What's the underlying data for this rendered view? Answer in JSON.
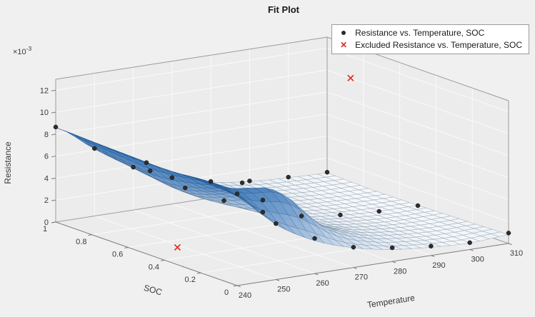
{
  "chart_data": {
    "type": "surface",
    "title": "Fit Plot",
    "axes": {
      "x": {
        "label": "Temperature",
        "range": [
          240,
          310
        ],
        "ticks": [
          240,
          250,
          260,
          270,
          280,
          290,
          300,
          310
        ]
      },
      "y": {
        "label": "SOC",
        "range": [
          0,
          1
        ],
        "ticks": [
          0,
          0.2,
          0.4,
          0.6,
          0.8,
          1
        ]
      },
      "z": {
        "label": "Resistance",
        "multiplier_text": "×10",
        "multiplier_exponent": "-3",
        "range_scaled": [
          0,
          13
        ],
        "ticks": [
          0,
          2,
          4,
          6,
          8,
          10,
          12
        ]
      }
    },
    "legend": {
      "items": [
        {
          "label": "Resistance vs. Temperature, SOC",
          "marker": "dot",
          "color": "#2b2b2b",
          "glyph": "●"
        },
        {
          "label": "Excluded Resistance vs. Temperature, SOC",
          "marker": "x",
          "color": "#df2a1e",
          "glyph": "✕"
        }
      ]
    },
    "surface": {
      "temps": [
        240,
        250,
        260,
        270,
        280,
        290,
        300,
        310
      ],
      "socs": [
        0,
        0.2,
        0.4,
        0.6,
        0.8,
        1
      ],
      "resistance_mOhm": [
        [
          8.2,
          5.0,
          3.0,
          1.8,
          1.1,
          0.75,
          0.6,
          0.8
        ],
        [
          8.4,
          6.9,
          6.3,
          2.9,
          1.4,
          0.85,
          0.65,
          0.7
        ],
        [
          8.3,
          6.0,
          4.4,
          2.2,
          1.25,
          0.8,
          0.6,
          0.62
        ],
        [
          8.4,
          5.3,
          3.3,
          1.95,
          1.15,
          0.75,
          0.58,
          0.55
        ],
        [
          8.5,
          5.7,
          3.45,
          2.05,
          1.25,
          0.85,
          0.62,
          0.55
        ],
        [
          8.6,
          6.1,
          3.9,
          2.4,
          1.45,
          0.95,
          0.75,
          0.65
        ]
      ]
    },
    "scatter_points_T_SOC_mOhm": [
      [
        240,
        0,
        8.35
      ],
      [
        250,
        0,
        5.1
      ],
      [
        260,
        0,
        3.2
      ],
      [
        270,
        0,
        1.85
      ],
      [
        280,
        0,
        1.25
      ],
      [
        290,
        0,
        0.85
      ],
      [
        300,
        0,
        0.62
      ],
      [
        310,
        0,
        0.95
      ],
      [
        240,
        0.5,
        8.3
      ],
      [
        250,
        0.5,
        5.45
      ],
      [
        260,
        0.5,
        3.75
      ],
      [
        270,
        0.5,
        2.15
      ],
      [
        280,
        0.5,
        1.25
      ],
      [
        290,
        0.5,
        0.8
      ],
      [
        300,
        0.5,
        0.58
      ],
      [
        310,
        0.5,
        0.55
      ],
      [
        240,
        1,
        8.65
      ],
      [
        250,
        1,
        6.15
      ],
      [
        260,
        1,
        3.9
      ],
      [
        270,
        1,
        2.4
      ],
      [
        280,
        1,
        1.5
      ],
      [
        290,
        1,
        1.0
      ],
      [
        300,
        1,
        0.8
      ],
      [
        310,
        1,
        0.7
      ],
      [
        253,
        0.25,
        7.2
      ],
      [
        255,
        0.8,
        5.0
      ],
      [
        263,
        0.35,
        4.5
      ]
    ],
    "excluded_points_T_SOC_mOhm": [
      [
        295,
        0.55,
        12.7
      ],
      [
        248,
        0.5,
        0.15
      ]
    ],
    "colors": {
      "background": "#f0f0f0",
      "wall": "#ececec",
      "grid": "#fafafa",
      "box_edge": "#9b9b9b",
      "axis_edge": "#7a7a7a",
      "tick_text": "#3a3a3a",
      "surface_low": "#fbfdff",
      "surface_high": "#2a6cb3",
      "mesh_low": "#98a0a8",
      "mesh_high": "#1c4f87",
      "point": "#2e2e2e",
      "excluded": "#df2a1e",
      "legend_border": "#999999",
      "title_text": "#1a1a1a"
    }
  }
}
